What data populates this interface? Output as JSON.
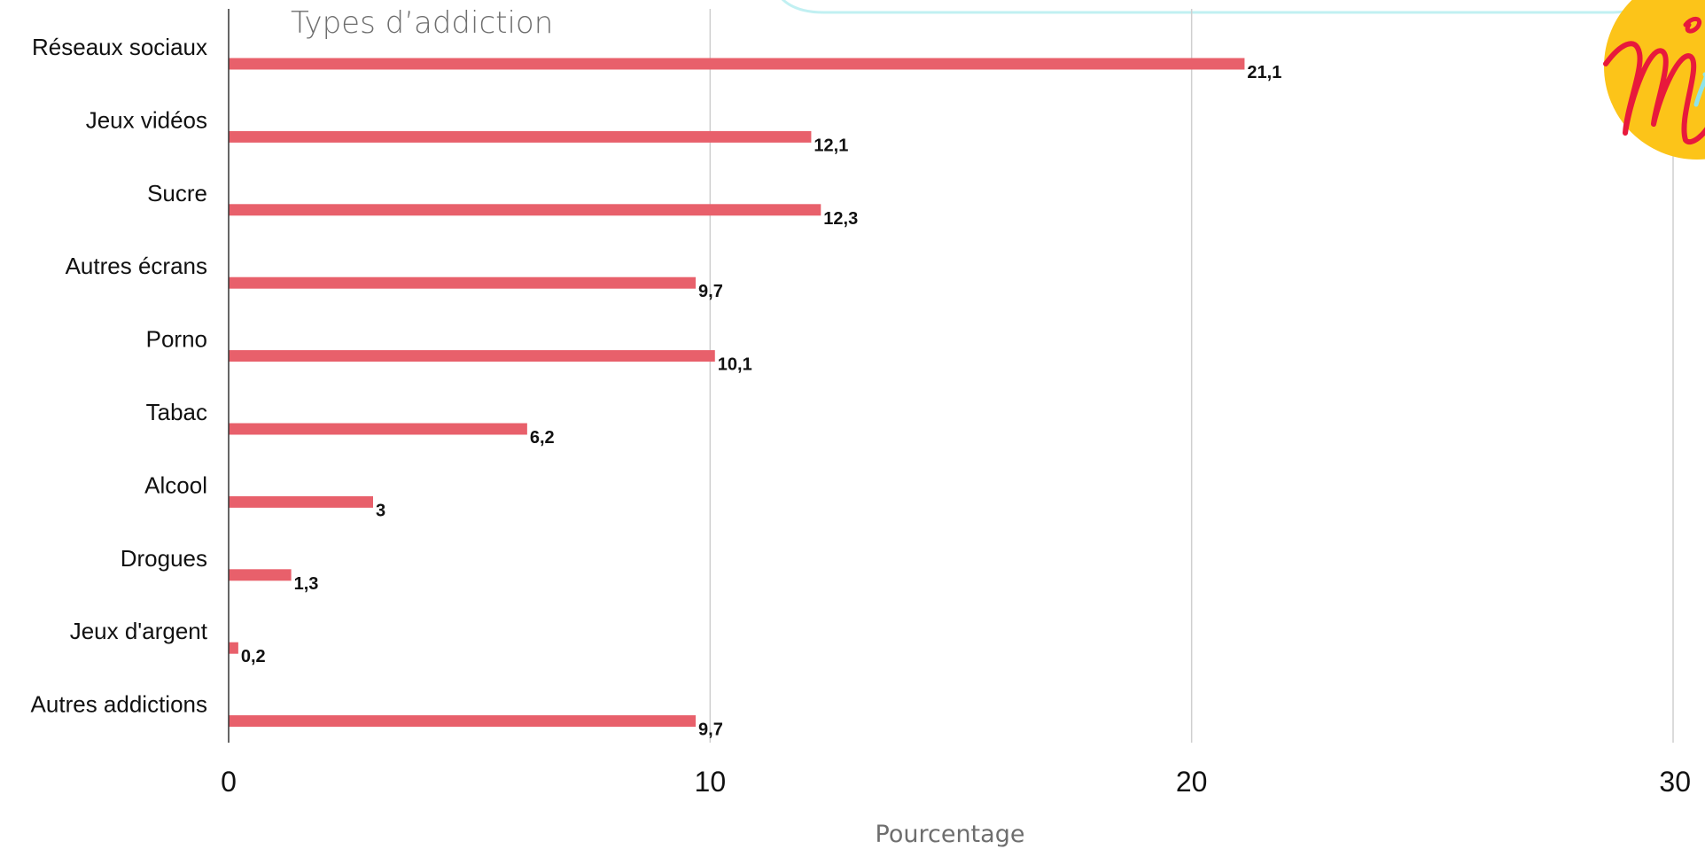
{
  "chart_data": {
    "type": "bar",
    "orientation": "horizontal",
    "title": "Types d’addiction",
    "xlabel": "Pourcentage",
    "ylabel": "",
    "xlim": [
      0,
      30
    ],
    "x_ticks": [
      0,
      10,
      20,
      30
    ],
    "x_tick_labels": [
      "0",
      "10",
      "20",
      "30"
    ],
    "grid": true,
    "categories": [
      "Réseaux sociaux",
      "Jeux vidéos",
      "Sucre",
      "Autres écrans",
      "Porno",
      "Tabac",
      "Alcool",
      "Drogues",
      "Jeux d'argent",
      "Autres addictions"
    ],
    "series": [
      {
        "values": [
          21.1,
          12.1,
          12.3,
          9.7,
          10.1,
          6.2,
          3,
          1.3,
          0.2,
          9.7
        ],
        "labels": [
          "21,1",
          "12,1",
          "12,3",
          "9,7",
          "10,1",
          "6,2",
          "3",
          "1,3",
          "0,2",
          "9,7"
        ],
        "color": "#e8606b"
      }
    ]
  },
  "colors": {
    "bar": "#e8606b",
    "logo_yellow": "#fcc419",
    "logo_red": "#e8193c",
    "logo_cyan": "#8ee3e8"
  },
  "icons": {
    "logo": "brand-logo"
  }
}
